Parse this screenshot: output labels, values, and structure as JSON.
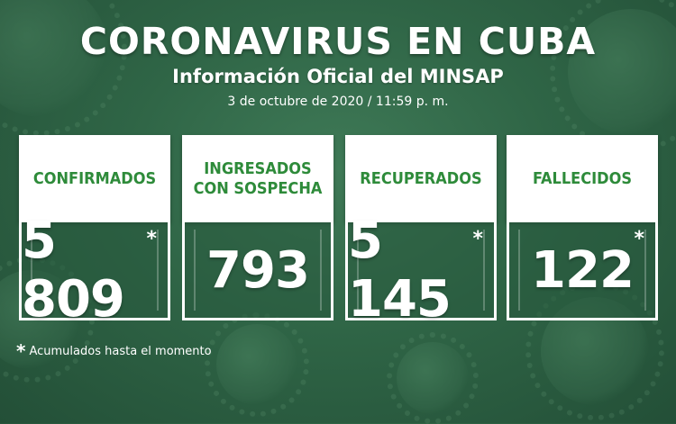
{
  "header": {
    "title": "CORONAVIRUS EN CUBA",
    "subtitle": "Información Oficial del MINSAP",
    "date": "3 de octubre de 2020 / 11:59 p. m."
  },
  "cards": [
    {
      "label_line1": "CONFIRMADOS",
      "label_line2": "",
      "value": "5 809",
      "asterisk": "*"
    },
    {
      "label_line1": "INGRESADOS",
      "label_line2": "CON SOSPECHA",
      "value": "793",
      "asterisk": ""
    },
    {
      "label_line1": "RECUPERADOS",
      "label_line2": "",
      "value": "5 145",
      "asterisk": "*"
    },
    {
      "label_line1": "FALLECIDOS",
      "label_line2": "",
      "value": "122",
      "asterisk": "*"
    }
  ],
  "footnote": {
    "star": "*",
    "text": "Acumulados hasta el momento"
  },
  "colors": {
    "background": "#2f6546",
    "label_green": "#2e8b3a",
    "card_white": "#ffffff"
  }
}
